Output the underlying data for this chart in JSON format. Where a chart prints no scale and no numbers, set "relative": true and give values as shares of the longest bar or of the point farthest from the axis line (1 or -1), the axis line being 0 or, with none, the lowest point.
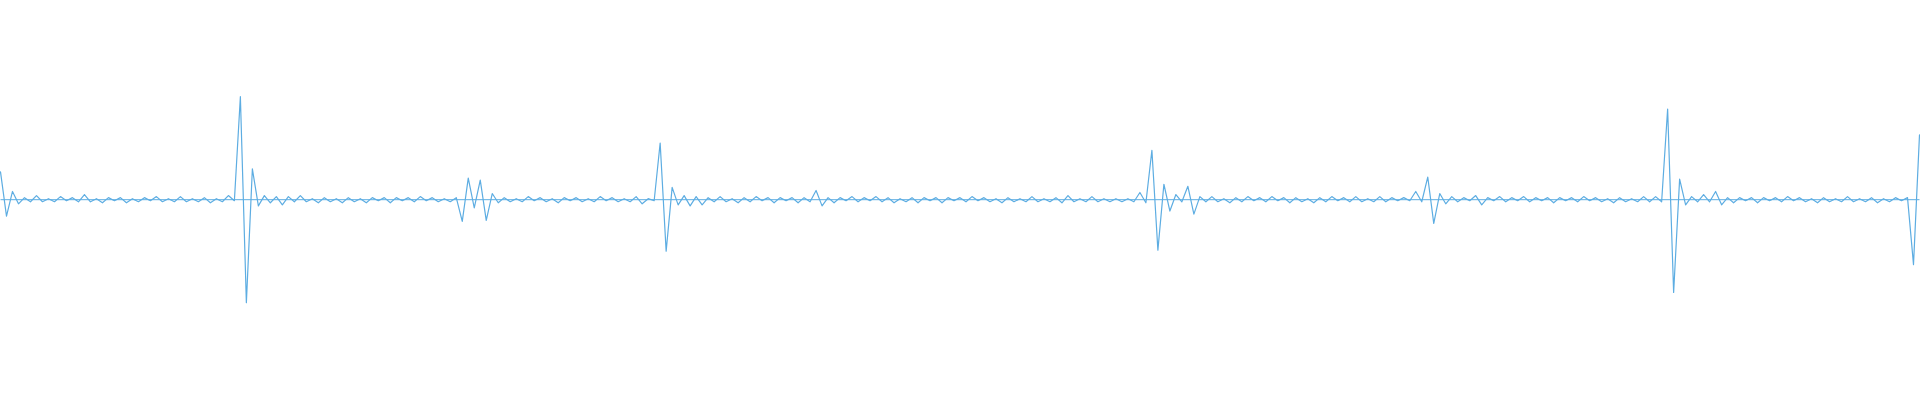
{
  "chart_data": {
    "type": "line",
    "relative": true,
    "categories": [
      null,
      null,
      null,
      null,
      null,
      null,
      null,
      null,
      null,
      null,
      null,
      null,
      null,
      null,
      null,
      null,
      null,
      null,
      null,
      null,
      null,
      null,
      null,
      null,
      null,
      null,
      null,
      null,
      null,
      null,
      null,
      null,
      null,
      null,
      null,
      null,
      null,
      null,
      null,
      null,
      null,
      null,
      null,
      null,
      null,
      null,
      null,
      null,
      null,
      null,
      null,
      null,
      null,
      null,
      null,
      null,
      null,
      null,
      null,
      null,
      null,
      null,
      null,
      null,
      null,
      null,
      null,
      null,
      null,
      null,
      null,
      null,
      null,
      null,
      null,
      null,
      null,
      null,
      null,
      null,
      null,
      null,
      null,
      null,
      null,
      null,
      null,
      null,
      null,
      null,
      null,
      null,
      null,
      null,
      null,
      null,
      null,
      null,
      null,
      null,
      null,
      null,
      null,
      null,
      null,
      null,
      null,
      null,
      null,
      null,
      null,
      null,
      null,
      null,
      null,
      null,
      null,
      null,
      null,
      null,
      null,
      null,
      null,
      null,
      null,
      null,
      null,
      null,
      null,
      null,
      null,
      null,
      null,
      null,
      null,
      null,
      null,
      null,
      null,
      null,
      null,
      null,
      null,
      null,
      null,
      null,
      null,
      null,
      null,
      null,
      null,
      null,
      null,
      null,
      null,
      null,
      null,
      null,
      null,
      null,
      null,
      null,
      null,
      null,
      null,
      null,
      null,
      null,
      null,
      null,
      null,
      null,
      null,
      null,
      null,
      null,
      null,
      null,
      null,
      null,
      null,
      null,
      null,
      null,
      null,
      null,
      null,
      null,
      null,
      null,
      null,
      null,
      null,
      null,
      null,
      null,
      null,
      null,
      null,
      null,
      null,
      null,
      null,
      null,
      null,
      null,
      null,
      null,
      null,
      null,
      null,
      null,
      null,
      null,
      null,
      null,
      null,
      null,
      null,
      null,
      null,
      null,
      null,
      null,
      null,
      null,
      null,
      null,
      null,
      null,
      null,
      null,
      null,
      null,
      null,
      null,
      null,
      null,
      null,
      null,
      null,
      null,
      null,
      null,
      null,
      null,
      null,
      null,
      null,
      null,
      null,
      null,
      null,
      null,
      null,
      null,
      null,
      null,
      null,
      null,
      null,
      null,
      null,
      null,
      null,
      null,
      null,
      null,
      null,
      null,
      null,
      null,
      null,
      null,
      null,
      null,
      null,
      null,
      null,
      null,
      null,
      null,
      null,
      null,
      null,
      null,
      null,
      null,
      null,
      null,
      null,
      null,
      null,
      null,
      null,
      null,
      null,
      null,
      null,
      null,
      null,
      null,
      null,
      null,
      null,
      null,
      null,
      null,
      null,
      null,
      null,
      null,
      null,
      null,
      null,
      null,
      null,
      null,
      null,
      null,
      null
    ],
    "series": [
      {
        "color": "#5dade2",
        "values": [
          0.27,
          -0.16,
          0.08,
          -0.04,
          0.02,
          -0.02,
          0.04,
          -0.02,
          0.01,
          -0.02,
          0.03,
          -0.01,
          0.02,
          -0.02,
          0.05,
          -0.02,
          0.01,
          -0.03,
          0.02,
          -0.01,
          0.02,
          -0.03,
          0.01,
          -0.02,
          0.02,
          -0.01,
          0.03,
          -0.02,
          0.01,
          -0.02,
          0.03,
          -0.02,
          0.01,
          -0.02,
          0.02,
          -0.03,
          0.01,
          -0.02,
          0.04,
          -0.01,
          1,
          -1,
          0.3,
          -0.06,
          0.04,
          -0.03,
          0.03,
          -0.05,
          0.03,
          -0.02,
          0.04,
          -0.02,
          0.01,
          -0.03,
          0.02,
          -0.02,
          0.01,
          -0.03,
          0.02,
          -0.02,
          0.01,
          -0.03,
          0.02,
          -0.01,
          0.02,
          -0.03,
          0.02,
          -0.01,
          0.02,
          -0.02,
          0.03,
          -0.01,
          0.02,
          -0.02,
          0.01,
          -0.02,
          0.02,
          -0.21,
          0.21,
          -0.08,
          0.19,
          -0.2,
          0.06,
          -0.03,
          0.02,
          -0.02,
          0.01,
          -0.02,
          0.03,
          -0.01,
          0.02,
          -0.02,
          0.01,
          -0.03,
          0.02,
          -0.01,
          0.02,
          -0.02,
          0.01,
          -0.02,
          0.03,
          -0.01,
          0.02,
          -0.02,
          0.01,
          -0.02,
          0.03,
          -0.04,
          0.01,
          -0.01,
          0.55,
          -0.5,
          0.12,
          -0.05,
          0.04,
          -0.06,
          0.03,
          -0.05,
          0.02,
          -0.02,
          0.03,
          -0.02,
          0.01,
          -0.03,
          0.02,
          -0.02,
          0.03,
          -0.01,
          0.02,
          -0.03,
          0.02,
          -0.01,
          0.02,
          -0.03,
          0.02,
          -0.02,
          0.09,
          -0.06,
          0.02,
          -0.03,
          0.02,
          -0.01,
          0.03,
          -0.02,
          0.02,
          -0.01,
          0.03,
          -0.02,
          0.02,
          -0.03,
          0.01,
          -0.02,
          0.02,
          -0.03,
          0.02,
          -0.01,
          0.02,
          -0.03,
          0.02,
          -0.01,
          0.02,
          -0.02,
          0.03,
          -0.01,
          0.02,
          -0.02,
          0.01,
          -0.03,
          0.02,
          -0.02,
          0.01,
          -0.02,
          0.03,
          -0.02,
          0.01,
          -0.02,
          0.02,
          -0.03,
          0.04,
          -0.02,
          0.01,
          -0.02,
          0.03,
          -0.02,
          0.01,
          -0.02,
          0.01,
          -0.02,
          0.01,
          -0.02,
          0.07,
          -0.03,
          0.48,
          -0.49,
          0.15,
          -0.11,
          0.05,
          -0.02,
          0.13,
          -0.14,
          0.03,
          -0.02,
          0.03,
          -0.02,
          0.01,
          -0.03,
          0.02,
          -0.02,
          0.03,
          -0.01,
          0.02,
          -0.02,
          0.03,
          -0.01,
          0.02,
          -0.03,
          0.02,
          -0.02,
          0.01,
          -0.03,
          0.02,
          -0.02,
          0.03,
          -0.01,
          0.02,
          -0.02,
          0.03,
          -0.02,
          0.01,
          -0.02,
          0.03,
          -0.02,
          0.02,
          -0.01,
          0.02,
          -0.01,
          0.08,
          -0.02,
          0.22,
          -0.23,
          0.06,
          -0.04,
          0.03,
          -0.02,
          0.02,
          -0.01,
          0.04,
          -0.05,
          0.02,
          -0.01,
          0.03,
          -0.02,
          0.02,
          -0.01,
          0.03,
          -0.02,
          0.02,
          -0.01,
          0.02,
          -0.03,
          0.02,
          -0.01,
          0.02,
          -0.02,
          0.03,
          -0.01,
          0.02,
          -0.02,
          0.01,
          -0.03,
          0.02,
          -0.02,
          0.01,
          -0.02,
          0.03,
          -0.02,
          0.03,
          -0.02,
          0.88,
          -0.9,
          0.2,
          -0.05,
          0.03,
          -0.02,
          0.05,
          -0.02,
          0.08,
          -0.05,
          0.02,
          -0.03,
          0.02,
          -0.01,
          0.02,
          -0.03,
          0.02,
          -0.01,
          0.02,
          -0.02,
          0.03,
          -0.01,
          0.02,
          -0.02,
          0.01,
          -0.03,
          0.02,
          -0.02,
          0.01,
          -0.02,
          0.03,
          -0.02,
          0.01,
          -0.02,
          0.02,
          -0.03,
          0.01,
          -0.02,
          0.02,
          -0.01,
          0.02,
          -0.63,
          0.63
        ]
      }
    ],
    "ref_lines": [
      {
        "axis": "y",
        "value": 0,
        "color": "#5dade2"
      }
    ]
  }
}
